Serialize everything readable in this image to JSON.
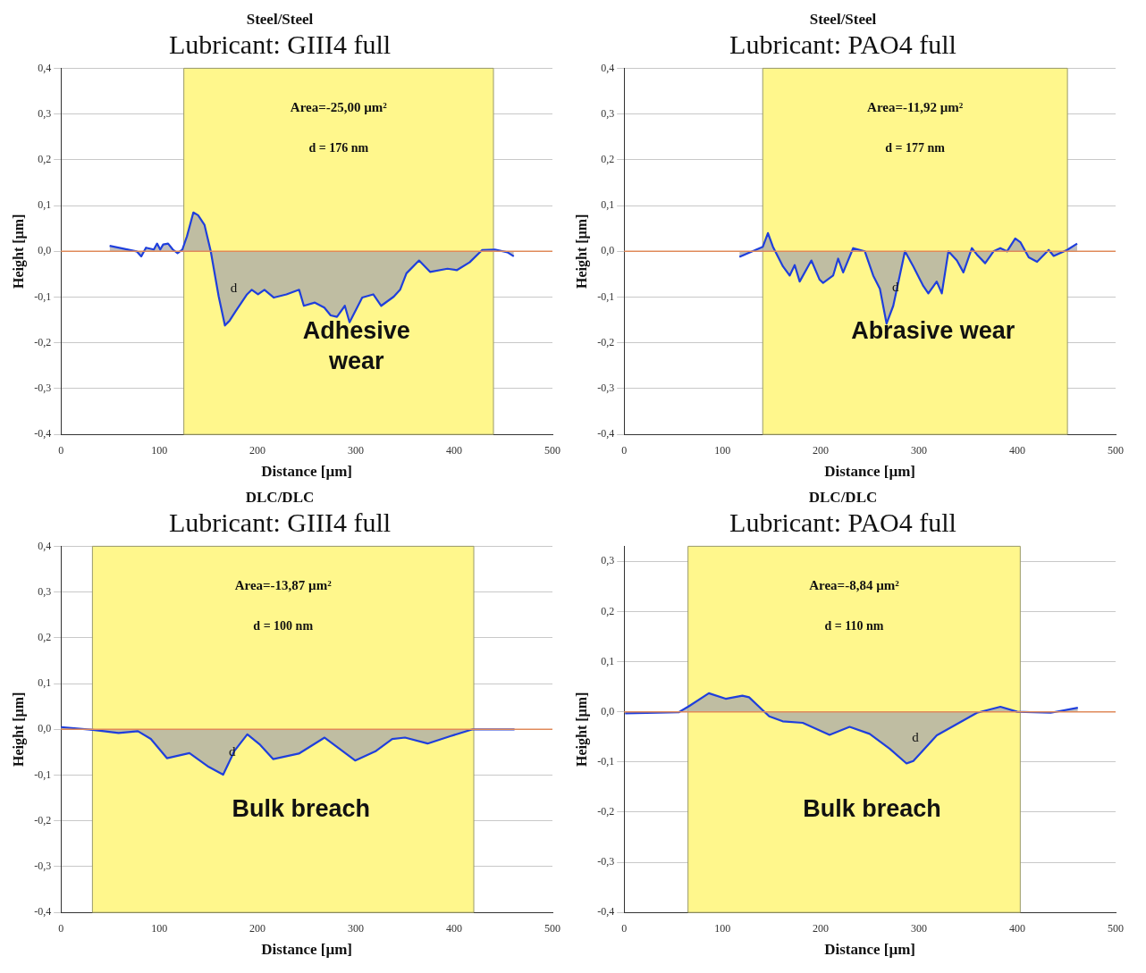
{
  "chart_data": [
    {
      "type": "area",
      "title": "Steel/Steel",
      "subtitle": "Lubricant: GIII4 full",
      "xlabel": "Distance [µm]",
      "ylabel": "Height [µm]",
      "xlim": [
        0,
        500
      ],
      "xticks": [
        0,
        100,
        200,
        300,
        400,
        500
      ],
      "ylim": [
        -0.4,
        0.4
      ],
      "yticks": [
        {
          "value": -0.4,
          "label": "-0,4"
        },
        {
          "value": -0.3,
          "label": "-0,3"
        },
        {
          "value": -0.2,
          "label": "-0,2"
        },
        {
          "value": -0.1,
          "label": "-0,1"
        },
        {
          "value": 0,
          "label": "0,0"
        },
        {
          "value": 0.1,
          "label": "0,1"
        },
        {
          "value": 0.2,
          "label": "0,2"
        },
        {
          "value": 0.3,
          "label": "0,3"
        },
        {
          "value": 0.4,
          "label": "0,4"
        }
      ],
      "grid": "y",
      "marker": "none",
      "bands": [
        {
          "axis": "x",
          "from": 125,
          "to": 440,
          "color": "#fff78c"
        }
      ],
      "ref_lines": [
        {
          "axis": "y",
          "value": 0,
          "color": "#e08a5a"
        }
      ],
      "annotations": [
        "Area=-25,00 µm²",
        "d = 176 nm",
        "Adhesive\nwear",
        "d"
      ],
      "series": [
        {
          "color": "#1f3fdc",
          "x": [
            49.5,
            77,
            81.7,
            86.5,
            94.5,
            97.8,
            101,
            104,
            109,
            113.8,
            118.6,
            123.5,
            128.2,
            134.7,
            139.5,
            146,
            152.3,
            160.4,
            166.8,
            171.7,
            178,
            189.3,
            194.1,
            200.5,
            207,
            216.6,
            229.4,
            242.3,
            247.1,
            258.3,
            267.9,
            274.4,
            280.8,
            288.8,
            293.6,
            306.5,
            317.7,
            325.8,
            338.6,
            345,
            351.5,
            364.3,
            375.5,
            393.2,
            402.9,
            415.7,
            428.6,
            441.4,
            454.2,
            460.7
          ],
          "values": [
            0.012,
            0,
            -0.011,
            0.008,
            0.004,
            0.017,
            0.004,
            0.015,
            0.017,
            0.004,
            -0.004,
            0.004,
            0.033,
            0.085,
            0.079,
            0.058,
            0.001,
            -0.098,
            -0.162,
            -0.151,
            -0.13,
            -0.094,
            -0.084,
            -0.094,
            -0.084,
            -0.101,
            -0.094,
            -0.084,
            -0.119,
            -0.112,
            -0.123,
            -0.14,
            -0.143,
            -0.119,
            -0.155,
            -0.101,
            -0.094,
            -0.119,
            -0.099,
            -0.084,
            -0.048,
            -0.02,
            -0.045,
            -0.038,
            -0.041,
            -0.024,
            0.003,
            0.004,
            -0.002,
            -0.011
          ]
        }
      ]
    },
    {
      "type": "area",
      "title": "Steel/Steel",
      "subtitle": "Lubricant: PAO4 full",
      "xlabel": "Distance [µm]",
      "ylabel": "Height [µm]",
      "xlim": [
        0,
        500
      ],
      "xticks": [
        0,
        100,
        200,
        300,
        400,
        500
      ],
      "ylim": [
        -0.4,
        0.4
      ],
      "yticks": [
        {
          "value": -0.4,
          "label": "-0,4"
        },
        {
          "value": -0.3,
          "label": "-0,3"
        },
        {
          "value": -0.2,
          "label": "-0,2"
        },
        {
          "value": -0.1,
          "label": "-0,1"
        },
        {
          "value": 0,
          "label": "0,0"
        },
        {
          "value": 0.1,
          "label": "0,1"
        },
        {
          "value": 0.2,
          "label": "0,2"
        },
        {
          "value": 0.3,
          "label": "0,3"
        },
        {
          "value": 0.4,
          "label": "0,4"
        }
      ],
      "grid": "y",
      "marker": "none",
      "bands": [
        {
          "axis": "x",
          "from": 141,
          "to": 451,
          "color": "#fff78c"
        }
      ],
      "ref_lines": [
        {
          "axis": "y",
          "value": 0,
          "color": "#e08a5a"
        }
      ],
      "annotations": [
        "Area=-11,92 µm²",
        "d = 177 nm",
        "Abrasive wear",
        "d"
      ],
      "series": [
        {
          "color": "#1f3fdc",
          "x": [
            117.3,
            141.1,
            146.3,
            151.4,
            161.6,
            168.4,
            173.5,
            178.6,
            190.5,
            198.9,
            202.4,
            212.6,
            217.7,
            222.8,
            233,
            244.9,
            253.4,
            260.2,
            267,
            273.8,
            285.7,
            294.2,
            304.4,
            309.5,
            318,
            323.2,
            329.9,
            338.5,
            345.2,
            353.8,
            358.9,
            367.3,
            375.8,
            382.7,
            389.5,
            397.9,
            403.1,
            411.6,
            420.1,
            431.9,
            437,
            450.7,
            460.9
          ],
          "values": [
            -0.012,
            0.01,
            0.04,
            0.01,
            -0.033,
            -0.053,
            -0.03,
            -0.066,
            -0.02,
            -0.062,
            -0.069,
            -0.053,
            -0.016,
            -0.046,
            0.007,
            0,
            -0.053,
            -0.082,
            -0.158,
            -0.119,
            0,
            -0.033,
            -0.076,
            -0.092,
            -0.066,
            -0.092,
            0,
            -0.02,
            -0.046,
            0.007,
            -0.007,
            -0.026,
            0,
            0.007,
            0,
            0.028,
            0.02,
            -0.013,
            -0.023,
            0.003,
            -0.01,
            0.003,
            0.017
          ]
        }
      ]
    },
    {
      "type": "area",
      "title": "DLC/DLC",
      "subtitle": "Lubricant: GIII4 full",
      "xlabel": "Distance [µm]",
      "ylabel": "Height [µm]",
      "xlim": [
        0,
        500
      ],
      "xticks": [
        0,
        100,
        200,
        300,
        400,
        500
      ],
      "ylim": [
        -0.4,
        0.4
      ],
      "yticks": [
        {
          "value": -0.4,
          "label": "-0,4"
        },
        {
          "value": -0.3,
          "label": "-0,3"
        },
        {
          "value": -0.2,
          "label": "-0,2"
        },
        {
          "value": -0.1,
          "label": "-0,1"
        },
        {
          "value": 0,
          "label": "0,0"
        },
        {
          "value": 0.1,
          "label": "0,1"
        },
        {
          "value": 0.2,
          "label": "0,2"
        },
        {
          "value": 0.3,
          "label": "0,3"
        },
        {
          "value": 0.4,
          "label": "0,4"
        }
      ],
      "grid": "y",
      "marker": "none",
      "bands": [
        {
          "axis": "x",
          "from": 32,
          "to": 420,
          "color": "#fff78c"
        }
      ],
      "ref_lines": [
        {
          "axis": "y",
          "value": 0,
          "color": "#e08a5a"
        }
      ],
      "annotations": [
        "Area=-13,87 µm²",
        "d = 100 nm",
        "Bulk breach",
        "d"
      ],
      "series": [
        {
          "color": "#1f3fdc",
          "x": [
            0,
            32.4,
            58.6,
            78.3,
            91.4,
            107.8,
            130.7,
            150.3,
            165,
            176.5,
            189.6,
            202.7,
            215.8,
            242,
            268.2,
            299.3,
            320.6,
            337,
            350,
            373,
            395.9,
            418.8,
            461.4
          ],
          "values": [
            0.005,
            -0.001,
            -0.008,
            -0.004,
            -0.021,
            -0.063,
            -0.052,
            -0.082,
            -0.099,
            -0.047,
            -0.011,
            -0.034,
            -0.065,
            -0.053,
            -0.018,
            -0.068,
            -0.047,
            -0.021,
            -0.018,
            -0.031,
            -0.015,
            0,
            0
          ]
        }
      ]
    },
    {
      "type": "area",
      "title": "DLC/DLC",
      "subtitle": "Lubricant: PAO4 full",
      "xlabel": "Distance [µm]",
      "ylabel": "Height [µm]",
      "xlim": [
        0,
        500
      ],
      "xticks": [
        0,
        100,
        200,
        300,
        400,
        500
      ],
      "ylim": [
        -0.4,
        0.33
      ],
      "yticks": [
        {
          "value": -0.4,
          "label": "-0,4"
        },
        {
          "value": -0.3,
          "label": "-0,3"
        },
        {
          "value": -0.2,
          "label": "-0,2"
        },
        {
          "value": -0.1,
          "label": "-0,1"
        },
        {
          "value": 0,
          "label": "0,0"
        },
        {
          "value": 0.1,
          "label": "0,1"
        },
        {
          "value": 0.2,
          "label": "0,2"
        },
        {
          "value": 0.3,
          "label": "0,3"
        }
      ],
      "grid": "y",
      "marker": "none",
      "bands": [
        {
          "axis": "x",
          "from": 65,
          "to": 403,
          "color": "#fff78c"
        }
      ],
      "ref_lines": [
        {
          "axis": "y",
          "value": 0,
          "color": "#e08a5a"
        }
      ],
      "annotations": [
        "Area=-8,84 µm²",
        "d = 110 nm",
        "Bulk breach",
        "d"
      ],
      "series": [
        {
          "color": "#1f3fdc",
          "x": [
            1,
            55.5,
            65.8,
            86.2,
            103.3,
            120.3,
            127.1,
            147.6,
            161.3,
            181.7,
            209,
            229.4,
            249.8,
            270.3,
            287.3,
            294.2,
            318.1,
            359,
            382.8,
            400,
            434,
            461.6
          ],
          "values": [
            -0.003,
            -0.001,
            0.011,
            0.037,
            0.026,
            0.032,
            0.029,
            -0.009,
            -0.019,
            -0.022,
            -0.046,
            -0.03,
            -0.044,
            -0.074,
            -0.103,
            -0.098,
            -0.047,
            -0.002,
            0.01,
            0,
            -0.002,
            0.008
          ]
        }
      ]
    }
  ]
}
